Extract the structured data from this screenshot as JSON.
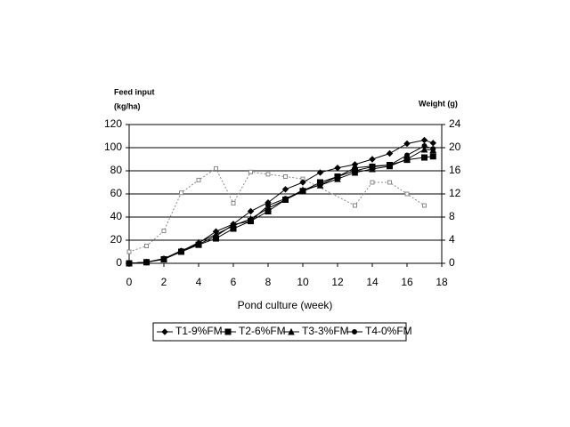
{
  "chart_data": {
    "type": "line",
    "y_label_lines": [
      "Feed input",
      "(kg/ha)"
    ],
    "y2_label": "Weight (g)",
    "x_label": "Pond culture (week)",
    "xlim": [
      0,
      18
    ],
    "xticks": [
      0,
      2,
      4,
      6,
      8,
      10,
      12,
      14,
      16,
      18
    ],
    "ylim": [
      0,
      120
    ],
    "yticks": [
      0,
      20,
      40,
      60,
      80,
      100,
      120
    ],
    "y2lim": [
      0,
      24
    ],
    "y2ticks": [
      0,
      4,
      8,
      12,
      16,
      20,
      24
    ],
    "grid": true,
    "legend": "bottom",
    "series": [
      {
        "color": "#888888",
        "dash": "dotted",
        "marker": "open-square",
        "axis": "y",
        "x": [
          0,
          1,
          2,
          3,
          4,
          5,
          6,
          7,
          8,
          9,
          10,
          13,
          14,
          15,
          16,
          17
        ],
        "values": [
          10,
          15,
          28,
          61,
          72,
          82,
          52,
          79,
          77,
          75,
          73,
          50,
          70,
          70,
          60,
          50
        ]
      },
      {
        "name": "T1-9%FM",
        "color": "#000000",
        "marker": "diamond",
        "axis": "y2",
        "x": [
          0,
          1,
          2,
          3,
          4,
          5,
          6,
          7,
          8,
          9,
          10,
          11,
          12,
          13,
          14,
          15,
          16,
          17,
          17.5
        ],
        "values": [
          0,
          0.2,
          0.8,
          2.1,
          3.5,
          5.5,
          6.8,
          9,
          10.5,
          12.8,
          14,
          15.7,
          16.5,
          17.1,
          18,
          19,
          20.7,
          21.3,
          20.8
        ]
      },
      {
        "name": "T2-6%FM",
        "color": "#000000",
        "marker": "square",
        "axis": "y2",
        "x": [
          0,
          1,
          2,
          3,
          4,
          5,
          6,
          7,
          8,
          9,
          10,
          11,
          12,
          13,
          14,
          15,
          16,
          17,
          17.5
        ],
        "values": [
          0,
          0.2,
          0.7,
          2,
          3.2,
          4.3,
          6,
          7.3,
          9,
          11,
          12.5,
          14,
          15,
          16,
          16.7,
          17,
          17.9,
          18.3,
          18.5
        ]
      },
      {
        "name": "T3-3%FM",
        "color": "#000000",
        "marker": "triangle",
        "axis": "y2",
        "x": [
          0,
          1,
          2,
          3,
          4,
          5,
          6,
          7,
          8,
          9,
          10,
          11,
          12,
          13,
          14,
          15,
          16,
          17,
          17.5
        ],
        "values": [
          0,
          0.2,
          0.7,
          2.1,
          3.6,
          5,
          6.5,
          7.7,
          9.5,
          11,
          12.7,
          13.5,
          14.6,
          15.7,
          16.3,
          16.8,
          18,
          19.7,
          19.6
        ]
      },
      {
        "name": "T4-0%FM",
        "color": "#000000",
        "marker": "circle",
        "axis": "y2",
        "x": [
          0,
          1,
          2,
          3,
          4,
          5,
          6,
          7,
          8,
          9,
          10,
          11,
          12,
          13,
          14,
          15,
          16,
          17,
          17.5
        ],
        "values": [
          0,
          0.2,
          0.8,
          2.2,
          3.3,
          4.7,
          6.7,
          7.3,
          10,
          11.2,
          12.5,
          13.6,
          15,
          16.5,
          16.8,
          17,
          18.7,
          20.3,
          19.8
        ]
      }
    ]
  }
}
